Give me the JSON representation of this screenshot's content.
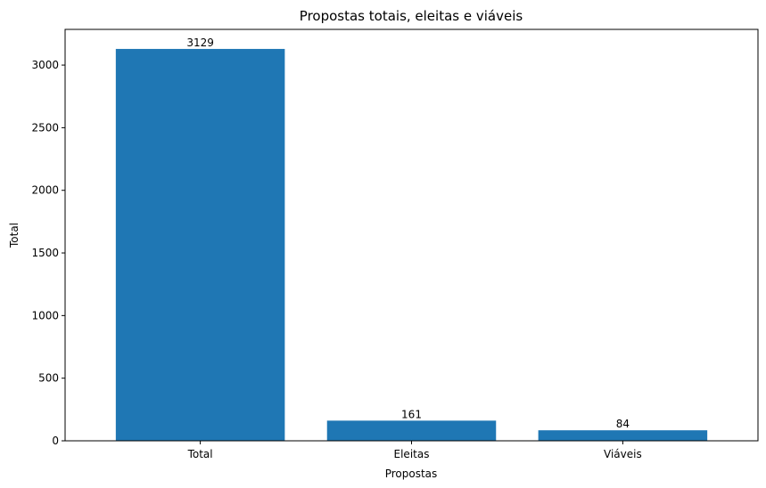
{
  "chart_data": {
    "type": "bar",
    "title": "Propostas totais, eleitas e viáveis",
    "xlabel": "Propostas",
    "ylabel": "Total",
    "categories": [
      "Total",
      "Eleitas",
      "Viáveis"
    ],
    "values": [
      3129,
      161,
      84
    ],
    "data_labels": [
      "3129",
      "161",
      "84"
    ],
    "ylim": [
      0,
      3285
    ],
    "yticks": [
      0,
      500,
      1000,
      1500,
      2000,
      2500,
      3000
    ],
    "grid": false,
    "legend": "none",
    "bar_color": "#1f77b4"
  }
}
